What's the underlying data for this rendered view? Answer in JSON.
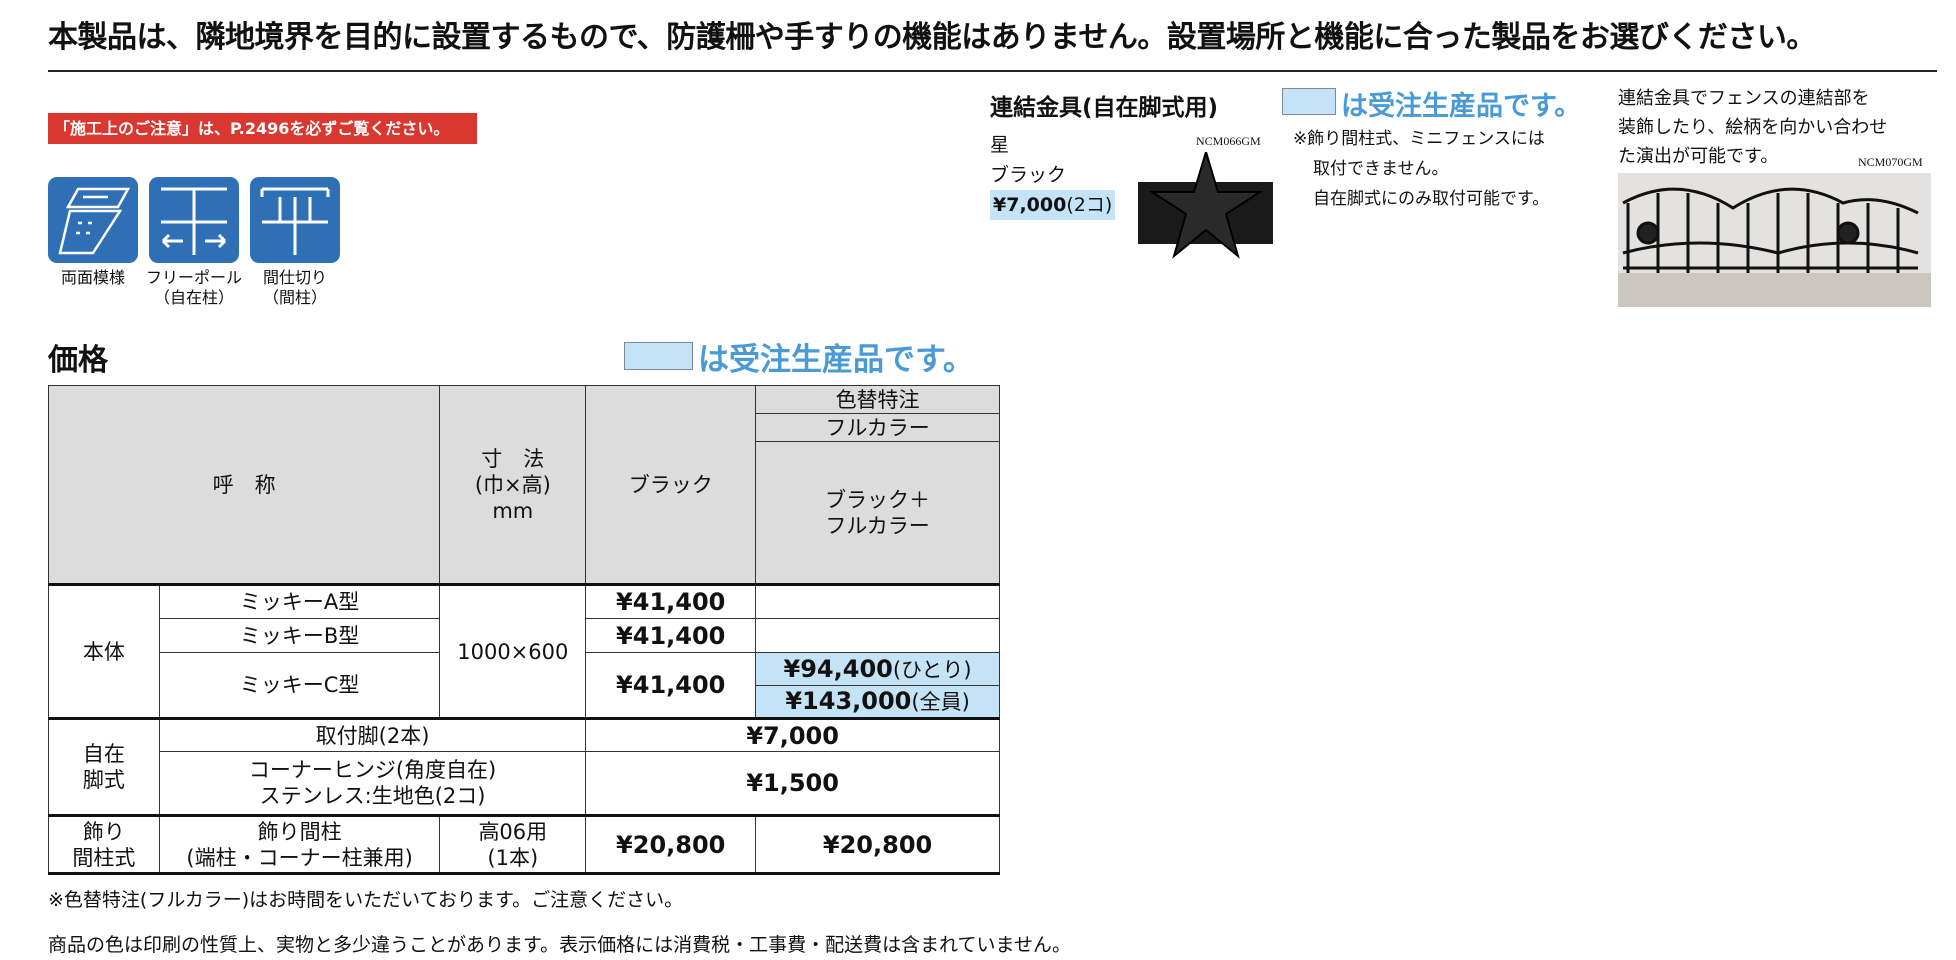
{
  "headline": "本製品は、隣地境界を目的に設置するもので、防護柵や手すりの機能はありません。設置場所と機能に合った製品をお選びください。",
  "banner": "「施工上のご注意」は、P.2496を必ずご覧ください。",
  "features": [
    {
      "icon": "double-sided-pattern-icon",
      "label": "両面模様",
      "sub": ""
    },
    {
      "icon": "free-pole-icon",
      "label": "フリーポール",
      "sub": "（自在柱）"
    },
    {
      "icon": "partition-post-icon",
      "label": "間仕切り",
      "sub": "（間柱）"
    }
  ],
  "price_section": {
    "title": "価格",
    "legend": "は受注生産品です。"
  },
  "table": {
    "headers": {
      "name": "呼　称",
      "size": [
        "寸　法",
        "(巾×高)",
        "mm"
      ],
      "black": "ブラック",
      "special": "色替特注",
      "fullcolor": "フルカラー",
      "black_full": [
        "ブラック＋",
        "フルカラー"
      ]
    },
    "body_group": "本体",
    "size_value": "1000×600",
    "rows": [
      {
        "name": "ミッキーA型",
        "black": "¥41,400"
      },
      {
        "name": "ミッキーB型",
        "black": "¥41,400"
      },
      {
        "name": "ミッキーC型",
        "black": "¥41,400",
        "full": [
          {
            "price": "¥94,400",
            "note": "(ひとり)"
          },
          {
            "price": "¥143,000",
            "note": "(全員)"
          }
        ]
      }
    ],
    "jizai_group": [
      "自在",
      "脚式"
    ],
    "jizai_rows": [
      {
        "name": "取付脚(2本)",
        "price": "¥7,000"
      },
      {
        "name": [
          "コーナーヒンジ(角度自在)",
          "ステンレス:生地色(2コ)"
        ],
        "price": "¥1,500"
      }
    ],
    "kazari_group": [
      "飾り",
      "間柱式"
    ],
    "kazari_row": {
      "name": [
        "飾り間柱",
        "(端柱・コーナー柱兼用)"
      ],
      "size": [
        "高06用",
        "(1本)"
      ],
      "black": "¥20,800",
      "full": "¥20,800"
    }
  },
  "notes": [
    "※色替特注(フルカラー)はお時間をいただいております。ご注意ください。",
    "商品の色は印刷の性質上、実物と多少違うことがあります。表示価格には消費税・工事費・配送費は含まれていません。"
  ],
  "connector": {
    "title": "連結金具(自在脚式用)",
    "legend": "は受注生産品です。",
    "name": "星",
    "color": "ブラック",
    "price": "¥7,000",
    "qty": "(2コ)",
    "code": "NCM066GM",
    "note": [
      "※飾り間柱式、ミニフェンスには",
      "取付できません。",
      "自在脚式にのみ取付可能です。"
    ],
    "desc": [
      "連結金具でフェンスの連結部を",
      "装飾したり、絵柄を向かい合わせ",
      "た演出が可能です。"
    ],
    "photo_code": "NCM070GM"
  },
  "colors": {
    "icon_blue": "#2f6fb5",
    "made_to_order": "#c5e3f6",
    "banner_red": "#d9372f",
    "legend_text": "#4a9ad6",
    "header_gray": "#dcdcdc"
  }
}
